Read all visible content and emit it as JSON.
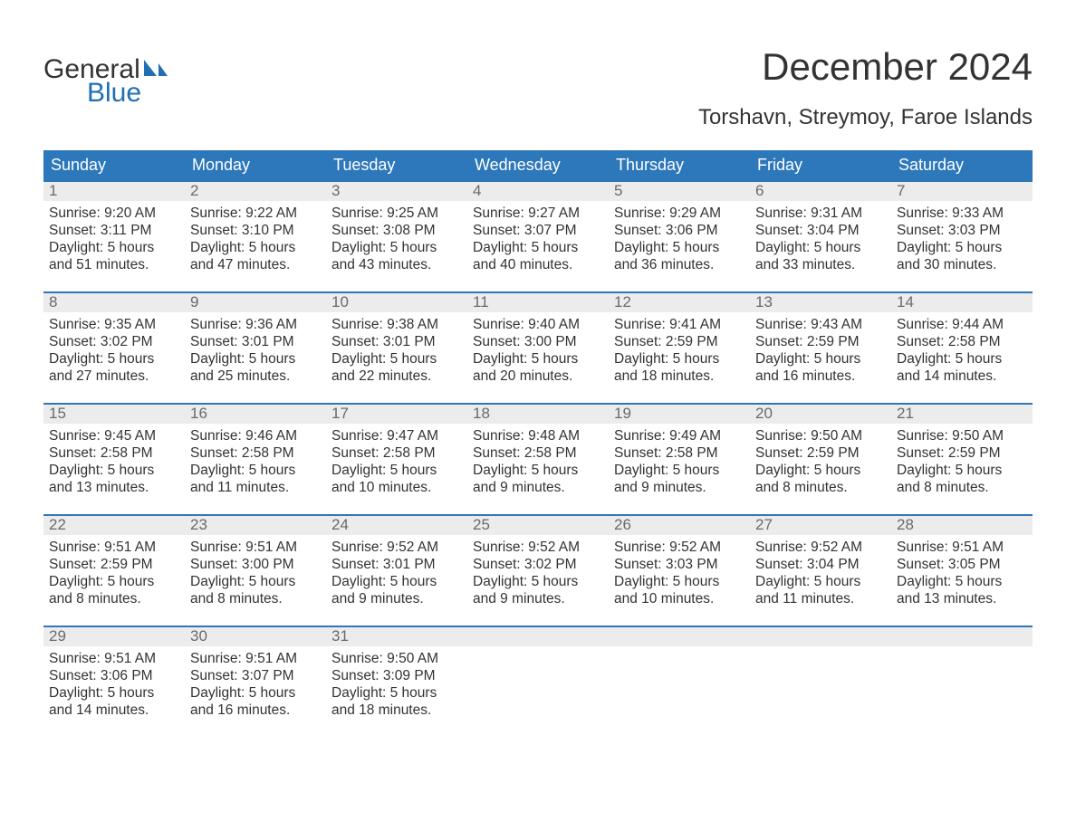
{
  "brand": {
    "part1": "General",
    "part2": "Blue",
    "color_blue": "#1f6fb2",
    "color_text": "#333333"
  },
  "title": "December 2024",
  "location": "Torshavn, Streymoy, Faroe Islands",
  "colors": {
    "header_bg": "#2d77bb",
    "header_text": "#ffffff",
    "row_border": "#2d77bb",
    "daynum_bg": "#ececec",
    "daynum_text": "#6a6a6a",
    "body_text": "#333333",
    "page_bg": "#ffffff"
  },
  "day_names": [
    "Sunday",
    "Monday",
    "Tuesday",
    "Wednesday",
    "Thursday",
    "Friday",
    "Saturday"
  ],
  "weeks": [
    [
      {
        "n": "1",
        "sunrise": "Sunrise: 9:20 AM",
        "sunset": "Sunset: 3:11 PM",
        "d1": "Daylight: 5 hours",
        "d2": "and 51 minutes."
      },
      {
        "n": "2",
        "sunrise": "Sunrise: 9:22 AM",
        "sunset": "Sunset: 3:10 PM",
        "d1": "Daylight: 5 hours",
        "d2": "and 47 minutes."
      },
      {
        "n": "3",
        "sunrise": "Sunrise: 9:25 AM",
        "sunset": "Sunset: 3:08 PM",
        "d1": "Daylight: 5 hours",
        "d2": "and 43 minutes."
      },
      {
        "n": "4",
        "sunrise": "Sunrise: 9:27 AM",
        "sunset": "Sunset: 3:07 PM",
        "d1": "Daylight: 5 hours",
        "d2": "and 40 minutes."
      },
      {
        "n": "5",
        "sunrise": "Sunrise: 9:29 AM",
        "sunset": "Sunset: 3:06 PM",
        "d1": "Daylight: 5 hours",
        "d2": "and 36 minutes."
      },
      {
        "n": "6",
        "sunrise": "Sunrise: 9:31 AM",
        "sunset": "Sunset: 3:04 PM",
        "d1": "Daylight: 5 hours",
        "d2": "and 33 minutes."
      },
      {
        "n": "7",
        "sunrise": "Sunrise: 9:33 AM",
        "sunset": "Sunset: 3:03 PM",
        "d1": "Daylight: 5 hours",
        "d2": "and 30 minutes."
      }
    ],
    [
      {
        "n": "8",
        "sunrise": "Sunrise: 9:35 AM",
        "sunset": "Sunset: 3:02 PM",
        "d1": "Daylight: 5 hours",
        "d2": "and 27 minutes."
      },
      {
        "n": "9",
        "sunrise": "Sunrise: 9:36 AM",
        "sunset": "Sunset: 3:01 PM",
        "d1": "Daylight: 5 hours",
        "d2": "and 25 minutes."
      },
      {
        "n": "10",
        "sunrise": "Sunrise: 9:38 AM",
        "sunset": "Sunset: 3:01 PM",
        "d1": "Daylight: 5 hours",
        "d2": "and 22 minutes."
      },
      {
        "n": "11",
        "sunrise": "Sunrise: 9:40 AM",
        "sunset": "Sunset: 3:00 PM",
        "d1": "Daylight: 5 hours",
        "d2": "and 20 minutes."
      },
      {
        "n": "12",
        "sunrise": "Sunrise: 9:41 AM",
        "sunset": "Sunset: 2:59 PM",
        "d1": "Daylight: 5 hours",
        "d2": "and 18 minutes."
      },
      {
        "n": "13",
        "sunrise": "Sunrise: 9:43 AM",
        "sunset": "Sunset: 2:59 PM",
        "d1": "Daylight: 5 hours",
        "d2": "and 16 minutes."
      },
      {
        "n": "14",
        "sunrise": "Sunrise: 9:44 AM",
        "sunset": "Sunset: 2:58 PM",
        "d1": "Daylight: 5 hours",
        "d2": "and 14 minutes."
      }
    ],
    [
      {
        "n": "15",
        "sunrise": "Sunrise: 9:45 AM",
        "sunset": "Sunset: 2:58 PM",
        "d1": "Daylight: 5 hours",
        "d2": "and 13 minutes."
      },
      {
        "n": "16",
        "sunrise": "Sunrise: 9:46 AM",
        "sunset": "Sunset: 2:58 PM",
        "d1": "Daylight: 5 hours",
        "d2": "and 11 minutes."
      },
      {
        "n": "17",
        "sunrise": "Sunrise: 9:47 AM",
        "sunset": "Sunset: 2:58 PM",
        "d1": "Daylight: 5 hours",
        "d2": "and 10 minutes."
      },
      {
        "n": "18",
        "sunrise": "Sunrise: 9:48 AM",
        "sunset": "Sunset: 2:58 PM",
        "d1": "Daylight: 5 hours",
        "d2": "and 9 minutes."
      },
      {
        "n": "19",
        "sunrise": "Sunrise: 9:49 AM",
        "sunset": "Sunset: 2:58 PM",
        "d1": "Daylight: 5 hours",
        "d2": "and 9 minutes."
      },
      {
        "n": "20",
        "sunrise": "Sunrise: 9:50 AM",
        "sunset": "Sunset: 2:59 PM",
        "d1": "Daylight: 5 hours",
        "d2": "and 8 minutes."
      },
      {
        "n": "21",
        "sunrise": "Sunrise: 9:50 AM",
        "sunset": "Sunset: 2:59 PM",
        "d1": "Daylight: 5 hours",
        "d2": "and 8 minutes."
      }
    ],
    [
      {
        "n": "22",
        "sunrise": "Sunrise: 9:51 AM",
        "sunset": "Sunset: 2:59 PM",
        "d1": "Daylight: 5 hours",
        "d2": "and 8 minutes."
      },
      {
        "n": "23",
        "sunrise": "Sunrise: 9:51 AM",
        "sunset": "Sunset: 3:00 PM",
        "d1": "Daylight: 5 hours",
        "d2": "and 8 minutes."
      },
      {
        "n": "24",
        "sunrise": "Sunrise: 9:52 AM",
        "sunset": "Sunset: 3:01 PM",
        "d1": "Daylight: 5 hours",
        "d2": "and 9 minutes."
      },
      {
        "n": "25",
        "sunrise": "Sunrise: 9:52 AM",
        "sunset": "Sunset: 3:02 PM",
        "d1": "Daylight: 5 hours",
        "d2": "and 9 minutes."
      },
      {
        "n": "26",
        "sunrise": "Sunrise: 9:52 AM",
        "sunset": "Sunset: 3:03 PM",
        "d1": "Daylight: 5 hours",
        "d2": "and 10 minutes."
      },
      {
        "n": "27",
        "sunrise": "Sunrise: 9:52 AM",
        "sunset": "Sunset: 3:04 PM",
        "d1": "Daylight: 5 hours",
        "d2": "and 11 minutes."
      },
      {
        "n": "28",
        "sunrise": "Sunrise: 9:51 AM",
        "sunset": "Sunset: 3:05 PM",
        "d1": "Daylight: 5 hours",
        "d2": "and 13 minutes."
      }
    ],
    [
      {
        "n": "29",
        "sunrise": "Sunrise: 9:51 AM",
        "sunset": "Sunset: 3:06 PM",
        "d1": "Daylight: 5 hours",
        "d2": "and 14 minutes."
      },
      {
        "n": "30",
        "sunrise": "Sunrise: 9:51 AM",
        "sunset": "Sunset: 3:07 PM",
        "d1": "Daylight: 5 hours",
        "d2": "and 16 minutes."
      },
      {
        "n": "31",
        "sunrise": "Sunrise: 9:50 AM",
        "sunset": "Sunset: 3:09 PM",
        "d1": "Daylight: 5 hours",
        "d2": "and 18 minutes."
      },
      null,
      null,
      null,
      null
    ]
  ]
}
